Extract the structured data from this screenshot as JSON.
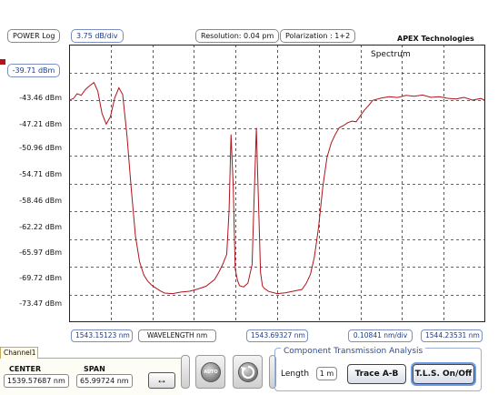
{
  "header": {
    "power_scale": "POWER Log",
    "db_per_div": "3.75 dB/div",
    "resolution": "Resolution: 0.04 pm",
    "polarization": "Polarization : 1+2",
    "brand": "APEX Technologies",
    "marker_color": "#b0141c"
  },
  "plot": {
    "title": "Spectrum",
    "trace_color": "#b0141c",
    "grid": true
  },
  "y_axis": {
    "ticks": [
      "-39.71 dBm",
      "-43.46 dBm",
      "-47.21 dBm",
      "-50.96 dBm",
      "-54.71 dBm",
      "-58.46 dBm",
      "-62.22 dBm",
      "-65.97 dBm",
      "-69.72 dBm",
      "-73.47 dBm"
    ]
  },
  "x_axis": {
    "start": "1543.15123 nm",
    "label": "WAVELENGTH nm",
    "center": "1543.69327 nm",
    "nm_per_div": "0.10841 nm/div",
    "stop": "1544.23531 nm"
  },
  "chart_data": {
    "type": "line",
    "title": "Spectrum",
    "xlabel": "WAVELENGTH nm",
    "ylabel": "",
    "xlim": [
      1543.15123,
      1544.23531
    ],
    "ylim": [
      -77.22,
      -39.71
    ],
    "grid": true,
    "series": [
      {
        "x": [
          1543.151,
          1543.162,
          1543.172,
          1543.183,
          1543.194,
          1543.205,
          1543.216,
          1543.226,
          1543.237,
          1543.248,
          1543.259,
          1543.27,
          1543.281,
          1543.291,
          1543.302,
          1543.313,
          1543.324,
          1543.335,
          1543.346,
          1543.356,
          1543.367,
          1543.378,
          1543.389,
          1543.4,
          1543.421,
          1543.443,
          1543.465,
          1543.486,
          1543.508,
          1543.53,
          1543.541,
          1543.552,
          1543.562,
          1543.568,
          1543.573,
          1543.579,
          1543.584,
          1543.59,
          1543.595,
          1543.606,
          1543.617,
          1543.628,
          1543.633,
          1543.639,
          1543.644,
          1543.65,
          1543.655,
          1543.66,
          1543.671,
          1543.693,
          1543.714,
          1543.736,
          1543.758,
          1543.769,
          1543.78,
          1543.79,
          1543.801,
          1543.812,
          1543.823,
          1543.834,
          1543.845,
          1543.855,
          1543.866,
          1543.877,
          1543.888,
          1543.899,
          1543.91,
          1543.92,
          1543.931,
          1543.942,
          1543.964,
          1543.985,
          1544.007,
          1544.029,
          1544.05,
          1544.072,
          1544.094,
          1544.115,
          1544.137,
          1544.159,
          1544.18,
          1544.202,
          1544.224,
          1544.235
        ],
        "y": [
          -47.2,
          -47.0,
          -46.3,
          -46.5,
          -45.7,
          -45.2,
          -44.8,
          -46.0,
          -49.0,
          -50.5,
          -49.5,
          -47.0,
          -45.6,
          -46.5,
          -52.0,
          -59.0,
          -65.5,
          -69.0,
          -70.8,
          -71.6,
          -72.2,
          -72.6,
          -73.0,
          -73.3,
          -73.4,
          -73.2,
          -73.1,
          -72.8,
          -72.4,
          -71.5,
          -70.5,
          -69.3,
          -68.0,
          -62.0,
          -51.8,
          -59.0,
          -70.0,
          -71.6,
          -72.3,
          -72.5,
          -72.0,
          -69.5,
          -61.0,
          -51.0,
          -60.0,
          -70.5,
          -72.3,
          -72.6,
          -73.0,
          -73.3,
          -73.2,
          -73.0,
          -72.8,
          -72.0,
          -70.8,
          -68.5,
          -64.5,
          -59.0,
          -55.0,
          -53.0,
          -51.8,
          -50.9,
          -50.6,
          -50.2,
          -50.0,
          -50.1,
          -49.3,
          -48.6,
          -48.0,
          -47.3,
          -47.0,
          -46.8,
          -46.9,
          -46.6,
          -46.7,
          -46.5,
          -46.8,
          -46.7,
          -46.9,
          -47.0,
          -46.8,
          -47.2,
          -47.0,
          -47.3
        ]
      }
    ]
  },
  "channel": {
    "tab": "Channel1",
    "center_label": "CENTER",
    "span_label": "SPAN",
    "center_value": "1539.57687 nm",
    "span_value": "65.99724 nm",
    "swap_icon": "↔"
  },
  "controls": {
    "auto_label": "AUTO"
  },
  "cta": {
    "title": "Component Transmission Analysis",
    "length_label": "Length",
    "length_value": "1 m",
    "trace_button": "Trace A-B",
    "tls_button": "T.L.S. On/Off"
  }
}
